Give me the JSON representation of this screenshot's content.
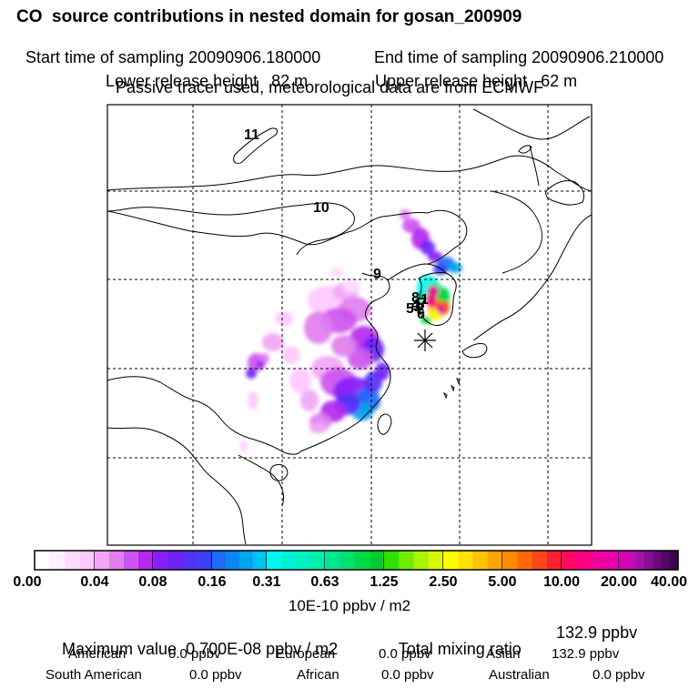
{
  "header": {
    "title": "CO  source contributions in nested domain for gosan_200909",
    "start_label": "Start time of sampling",
    "start_value": "20090906.180000",
    "end_label": "End time of sampling",
    "end_value": "20090906.210000",
    "lower_label": "Lower release height",
    "lower_value": "82 m",
    "upper_label": "Upper release height",
    "upper_value": "62 m",
    "note": "Passive tracer used, meteorological data are from ECMWF"
  },
  "map": {
    "trajectory_labels": [
      "11",
      "10",
      "9",
      "8",
      "7",
      "6",
      "5",
      "4",
      "3",
      "2",
      "1"
    ],
    "receptor_symbol": "star"
  },
  "chart_data": {
    "type": "heatmap",
    "title": "CO  source contributions in nested domain for gosan_200909",
    "colorbar": {
      "ticks": [
        "0.00",
        "0.04",
        "0.08",
        "0.16",
        "0.31",
        "0.63",
        "1.25",
        "2.50",
        "5.00",
        "10.00",
        "20.00",
        "40.00"
      ],
      "unit": "10E-10 ppbv / m2",
      "colors": [
        "#ffffff",
        "#ffeeff",
        "#ffdcff",
        "#ffc8ff",
        "#f0a6f4",
        "#e07eee",
        "#cc55ee",
        "#b428f0",
        "#8a1ef8",
        "#6e22f8",
        "#5530f8",
        "#3c40f8",
        "#1e6cf8",
        "#0888f0",
        "#00a4f0",
        "#00c2f0",
        "#00f6f0",
        "#00f0d6",
        "#00f0c0",
        "#00eeaa",
        "#00e890",
        "#00e070",
        "#00d84a",
        "#00cc30",
        "#30e000",
        "#70ec00",
        "#aaf200",
        "#d8f600",
        "#fcfc00",
        "#fde200",
        "#fec400",
        "#ffa600",
        "#ff8a00",
        "#ff6a08",
        "#ff4818",
        "#ff2030",
        "#ff0a60",
        "#ff0080",
        "#f0009a",
        "#e800b0",
        "#d800b0",
        "#bf0ab8",
        "#a012a8",
        "#880e96",
        "#6e0a7c",
        "#560666",
        "#3e044c"
      ]
    },
    "segments_per_decade": [
      4,
      4,
      4,
      4,
      4,
      4,
      4,
      4,
      4,
      4,
      7
    ]
  },
  "summary": {
    "max_label": "Maximum value",
    "max_value": "0.700E-08 ppbv / m2",
    "total_label": "Total mixing ratio",
    "total_value": "132.9 ppbv",
    "regions": [
      {
        "name": "American",
        "value": "0.0 ppbv"
      },
      {
        "name": "European",
        "value": "0.0 ppbv"
      },
      {
        "name": "Asian",
        "value": "132.9 ppbv"
      },
      {
        "name": "South American",
        "value": "0.0 ppbv"
      },
      {
        "name": "African",
        "value": "0.0 ppbv"
      },
      {
        "name": "Australian",
        "value": "0.0 ppbv"
      }
    ]
  }
}
